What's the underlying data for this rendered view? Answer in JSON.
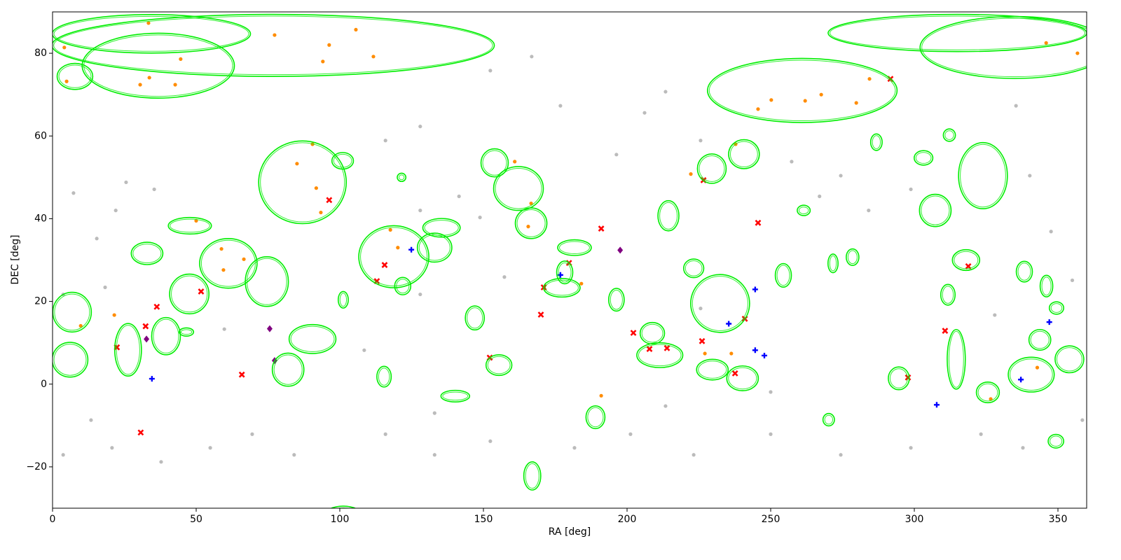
{
  "chart_data": {
    "type": "scatter",
    "xlabel": "RA [deg]",
    "ylabel": "DEC [deg]",
    "xlim": [
      0,
      360
    ],
    "ylim": [
      -30,
      90
    ],
    "xticks": [
      0,
      50,
      100,
      150,
      200,
      250,
      300,
      350
    ],
    "yticks": [
      {
        "value": -20,
        "label": "−20"
      },
      0,
      20,
      40,
      60,
      80
    ],
    "series": [
      {
        "color": "#bbbbbb",
        "marker": "circle",
        "x": [
          7.3,
          15.4,
          22,
          25.6,
          35.4,
          18.3,
          13.4,
          20.7,
          3.7,
          37.8,
          54.9,
          69.5,
          84.1,
          115.9,
          133,
          152.4,
          181.7,
          201.2,
          223.2,
          250,
          274.4,
          298.8,
          323.2,
          337.8,
          358.5,
          128,
          141.5,
          148.8,
          115.9,
          128,
          152.4,
          166.8,
          176.8,
          196.3,
          206.1,
          213.4,
          225.6,
          274.4,
          284.1,
          298.8,
          257.3,
          267,
          335.4,
          340.2,
          347.6,
          355,
          328,
          250,
          213.4,
          133,
          108.5,
          59.8,
          3.7,
          225.6,
          128,
          157.3
        ],
        "y": [
          46.2,
          35.2,
          42,
          48.8,
          47.1,
          23.4,
          -8.7,
          -15.4,
          -17.1,
          -18.8,
          -15.4,
          -12.1,
          -17.1,
          -12.1,
          -17.1,
          -13.8,
          -15.4,
          -12.1,
          -17.1,
          -12.1,
          -17.1,
          -15.4,
          -12.1,
          -15.4,
          -8.7,
          42,
          45.4,
          40.3,
          58.9,
          62.3,
          75.8,
          79.2,
          67.3,
          55.5,
          65.6,
          70.7,
          58.9,
          50.4,
          42,
          47.1,
          53.8,
          45.4,
          67.3,
          50.4,
          36.9,
          25.1,
          16.7,
          -1.9,
          -5.3,
          -7,
          8.2,
          13.3,
          21.7,
          18.3,
          21.7,
          25.9
        ]
      },
      {
        "color": "#ff8c00",
        "marker": "circle",
        "x": [
          4.1,
          33.4,
          77.3,
          96.3,
          105.6,
          111.7,
          94.1,
          44.6,
          30.5,
          33.7,
          42.7,
          4.9,
          345.9,
          356.8,
          245.6,
          250.2,
          262,
          267.6,
          279.8,
          284.4,
          90.5,
          85.1,
          91.8,
          93.4,
          160.9,
          166.6,
          165.6,
          222.2,
          237.8,
          50,
          58.8,
          66.6,
          59.5,
          117.6,
          120.2,
          184.1,
          191,
          326.6,
          342.8,
          227.1,
          236.3,
          21.5,
          9.8
        ],
        "y": [
          81.4,
          87.3,
          84.4,
          82,
          85.7,
          79.2,
          78,
          78.6,
          72.4,
          74.1,
          72.4,
          73.2,
          82.5,
          80,
          66.5,
          68.7,
          68.5,
          70,
          68,
          73.8,
          58,
          53.3,
          47.4,
          41.5,
          53.8,
          43.7,
          38.1,
          50.8,
          58,
          39.5,
          32.7,
          30.2,
          27.6,
          37.3,
          33,
          24.3,
          -2.8,
          -3.6,
          4,
          7.4,
          7.4,
          16.7,
          14.1
        ]
      },
      {
        "color": "#ff0000",
        "marker": "x",
        "x": [
          96.3,
          226.6,
          291.7,
          191,
          245.6,
          179.8,
          171,
          170,
          115.6,
          112.9,
          36.3,
          51.7,
          32.4,
          22.4,
          65.9,
          152.2,
          202.2,
          207.8,
          213.9,
          226.1,
          241,
          237.6,
          297.8,
          310.7,
          318.8,
          30.7
        ],
        "y": [
          44.5,
          49.3,
          73.8,
          37.6,
          39,
          29.3,
          23.4,
          16.8,
          28.8,
          24.9,
          18.7,
          22.4,
          14,
          8.9,
          2.3,
          6.4,
          12.4,
          8.5,
          8.7,
          10.4,
          15.8,
          2.6,
          1.6,
          12.9,
          28.5,
          -11.7
        ]
      },
      {
        "color": "#0000ff",
        "marker": "plus",
        "x": [
          124.9,
          176.8,
          244.6,
          235.4,
          244.6,
          247.8,
          34.6,
          347,
          337.1,
          307.8
        ],
        "y": [
          32.5,
          26.4,
          22.9,
          14.6,
          8.2,
          6.9,
          1.3,
          15,
          1.1,
          -5
        ]
      },
      {
        "color": "#800080",
        "marker": "diamond",
        "x": [
          75.6,
          32.7,
          77.3,
          197.6
        ],
        "y": [
          13.4,
          10.9,
          5.7,
          32.4
        ]
      }
    ],
    "ellipses": {
      "color": "#00ee00",
      "ra": [
        34.4,
        76.8,
        36.8,
        7.8,
        261,
        315,
        335,
        87,
        118.8,
        232.4,
        323.9,
        307.3,
        74.6,
        61.2,
        47.6,
        6.8,
        6.1,
        39.5,
        26.3,
        162.2,
        166.6,
        153.9,
        229.5,
        240.7,
        214.4,
        254.4,
        318,
        338.3,
        346,
        343.7,
        340.7,
        354,
        314.6,
        325.6,
        294.6,
        229.7,
        240.2,
        208.8,
        211.4,
        189,
        167,
        101.2,
        90.5,
        82,
        147,
        46.6,
        32.9,
        47.8,
        271.7,
        278.5,
        311.7,
        349.3,
        115.4,
        196.3,
        177.3,
        178.3,
        181.7,
        121.9,
        135.4,
        133,
        312.2,
        303.2,
        286.8,
        101,
        121.5,
        261.5,
        223.2,
        101.2,
        155.4,
        140.2,
        270.2,
        349.5
      ],
      "dec": [
        84.7,
        81.9,
        77,
        74.4,
        71,
        84.9,
        81.4,
        48.8,
        30.8,
        19.5,
        50.4,
        42,
        24.8,
        29.2,
        21.8,
        17.4,
        5.9,
        11.6,
        8.3,
        47.3,
        38.9,
        53.5,
        52.1,
        55.6,
        40.7,
        26.3,
        30,
        27.2,
        23.7,
        10.7,
        2.3,
        6,
        6,
        -2,
        1.4,
        3.5,
        1.4,
        12.3,
        7,
        -8,
        -22.2,
        -32,
        10.9,
        3.5,
        16,
        12.6,
        31.6,
        38.3,
        29.2,
        30.7,
        21.6,
        -13.8,
        1.8,
        20.4,
        23.3,
        27,
        33,
        23.7,
        37.8,
        33,
        60.2,
        54.7,
        58.5,
        54,
        50,
        42,
        28,
        20.4,
        4.6,
        -2.9,
        -8.6,
        18.4
      ],
      "width": [
        69,
        154,
        53,
        12.4,
        66,
        90,
        66,
        30.5,
        24.4,
        20.5,
        17,
        11,
        15,
        20,
        13.7,
        13.4,
        12.4,
        10,
        9.3,
        17.3,
        11,
        9.5,
        10,
        10.7,
        7.3,
        5.6,
        9.5,
        5.6,
        4.4,
        7.6,
        16,
        10,
        6.3,
        8,
        7.3,
        11,
        11,
        8.5,
        16,
        6.6,
        5.9,
        13.7,
        16.3,
        11,
        6.6,
        5,
        11,
        15,
        3.5,
        4.4,
        5,
        5.4,
        5,
        5.4,
        12.7,
        5.6,
        11.7,
        5.6,
        13,
        12,
        4.2,
        6.5,
        4,
        7.5,
        3,
        4.5,
        7,
        3.5,
        9,
        10,
        4,
        5
      ],
      "height": [
        9.3,
        15,
        15.7,
        6.3,
        15.5,
        9,
        15,
        20,
        15,
        14,
        16,
        7.8,
        12,
        12,
        9.6,
        9.6,
        8.4,
        9,
        12.7,
        10.6,
        7.4,
        6.8,
        7.1,
        7,
        7.3,
        5.7,
        5,
        5,
        5.2,
        5,
        8.4,
        6.5,
        14.4,
        5,
        5.5,
        5,
        6,
        5.2,
        6,
        5.5,
        6.8,
        5,
        7,
        8,
        5.8,
        2,
        5.4,
        4,
        4.5,
        4,
        5,
        3.3,
        5,
        5.5,
        4.5,
        5.5,
        3.8,
        4.2,
        4.5,
        7,
        3,
        3.5,
        4,
        4,
        2,
        2.5,
        4.5,
        4,
        5,
        2.8,
        3,
        3
      ]
    }
  }
}
